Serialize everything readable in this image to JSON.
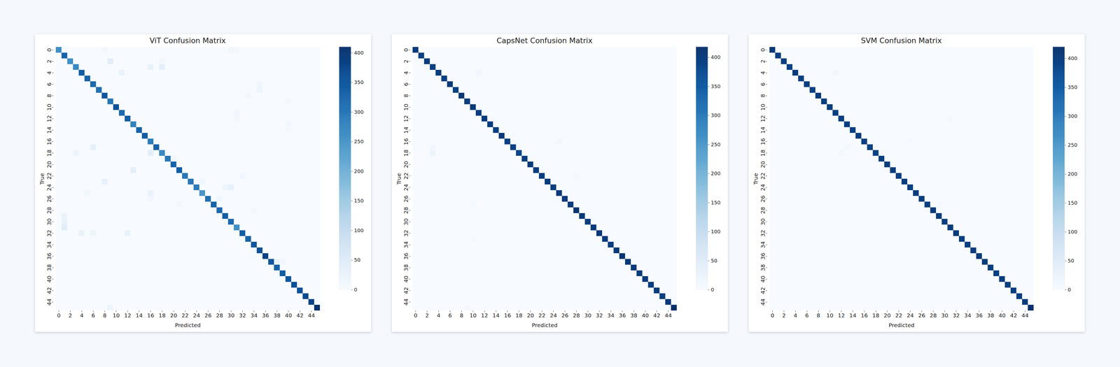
{
  "chart_data": [
    {
      "type": "heatmap",
      "title": "ViT Confusion Matrix",
      "xlabel": "Predicted",
      "ylabel": "True",
      "categories": [
        0,
        1,
        2,
        3,
        4,
        5,
        6,
        7,
        8,
        9,
        10,
        11,
        12,
        13,
        14,
        15,
        16,
        17,
        18,
        19,
        20,
        21,
        22,
        23,
        24,
        25,
        26,
        27,
        28,
        29,
        30,
        31,
        32,
        33,
        34,
        35,
        36,
        37,
        38,
        39,
        40,
        41,
        42,
        43,
        44,
        45
      ],
      "xticks": [
        0,
        2,
        4,
        6,
        8,
        10,
        12,
        14,
        16,
        18,
        20,
        22,
        24,
        26,
        28,
        30,
        32,
        34,
        36,
        38,
        40,
        42,
        44
      ],
      "yticks": [
        0,
        2,
        4,
        6,
        8,
        10,
        12,
        14,
        16,
        18,
        20,
        22,
        24,
        26,
        28,
        30,
        32,
        34,
        36,
        38,
        40,
        42,
        44
      ],
      "diagonal": [
        260,
        330,
        260,
        270,
        340,
        330,
        320,
        310,
        350,
        300,
        360,
        320,
        340,
        280,
        330,
        340,
        290,
        330,
        270,
        300,
        330,
        340,
        300,
        300,
        290,
        250,
        310,
        330,
        320,
        340,
        320,
        260,
        340,
        330,
        350,
        360,
        380,
        350,
        330,
        340,
        350,
        360,
        360,
        370,
        380,
        410
      ],
      "off_diagonal": [
        [
          0,
          8,
          12
        ],
        [
          0,
          30,
          15
        ],
        [
          0,
          31,
          10
        ],
        [
          2,
          9,
          45
        ],
        [
          2,
          18,
          12
        ],
        [
          3,
          16,
          30
        ],
        [
          3,
          18,
          40
        ],
        [
          4,
          11,
          30
        ],
        [
          6,
          35,
          15
        ],
        [
          7,
          35,
          20
        ],
        [
          8,
          33,
          12
        ],
        [
          9,
          40,
          10
        ],
        [
          11,
          31,
          15
        ],
        [
          12,
          31,
          10
        ],
        [
          13,
          40,
          12
        ],
        [
          14,
          40,
          10
        ],
        [
          17,
          6,
          35
        ],
        [
          18,
          3,
          20
        ],
        [
          18,
          16,
          45
        ],
        [
          19,
          20,
          12
        ],
        [
          21,
          13,
          40
        ],
        [
          22,
          32,
          15
        ],
        [
          23,
          8,
          35
        ],
        [
          23,
          25,
          15
        ],
        [
          24,
          29,
          20
        ],
        [
          24,
          30,
          35
        ],
        [
          25,
          5,
          15
        ],
        [
          25,
          16,
          30
        ],
        [
          26,
          16,
          12
        ],
        [
          26,
          28,
          15
        ],
        [
          27,
          21,
          12
        ],
        [
          28,
          34,
          12
        ],
        [
          29,
          1,
          25
        ],
        [
          30,
          1,
          30
        ],
        [
          31,
          1,
          45
        ],
        [
          32,
          4,
          30
        ],
        [
          32,
          6,
          20
        ],
        [
          32,
          12,
          30
        ],
        [
          37,
          38,
          30
        ],
        [
          37,
          39,
          15
        ],
        [
          45,
          9,
          20
        ]
      ],
      "colorbar_range": [
        0,
        410
      ],
      "colorbar_ticks": [
        0,
        50,
        100,
        150,
        200,
        250,
        300,
        350,
        400
      ]
    },
    {
      "type": "heatmap",
      "title": "CapsNet Confusion Matrix",
      "xlabel": "Predicted",
      "ylabel": "True",
      "categories": [
        0,
        1,
        2,
        3,
        4,
        5,
        6,
        7,
        8,
        9,
        10,
        11,
        12,
        13,
        14,
        15,
        16,
        17,
        18,
        19,
        20,
        21,
        22,
        23,
        24,
        25,
        26,
        27,
        28,
        29,
        30,
        31,
        32,
        33,
        34,
        35,
        36,
        37,
        38,
        39,
        40,
        41,
        42,
        43,
        44,
        45
      ],
      "xticks": [
        0,
        2,
        4,
        6,
        8,
        10,
        12,
        14,
        16,
        18,
        20,
        22,
        24,
        26,
        28,
        30,
        32,
        34,
        36,
        38,
        40,
        42,
        44
      ],
      "yticks": [
        0,
        2,
        4,
        6,
        8,
        10,
        12,
        14,
        16,
        18,
        20,
        22,
        24,
        26,
        28,
        30,
        32,
        34,
        36,
        38,
        40,
        42,
        44
      ],
      "diagonal": [
        400,
        395,
        400,
        392,
        398,
        395,
        400,
        392,
        405,
        398,
        402,
        396,
        400,
        398,
        395,
        404,
        392,
        388,
        384,
        396,
        400,
        398,
        398,
        400,
        396,
        402,
        400,
        398,
        410,
        404,
        398,
        402,
        405,
        400,
        398,
        402,
        410,
        404,
        400,
        398,
        402,
        396,
        400,
        395,
        404,
        418
      ],
      "off_diagonal": [
        [
          4,
          11,
          15
        ],
        [
          16,
          25,
          12
        ],
        [
          17,
          3,
          12
        ],
        [
          18,
          3,
          25
        ],
        [
          22,
          28,
          12
        ],
        [
          27,
          10,
          8
        ],
        [
          33,
          10,
          8
        ],
        [
          45,
          9,
          10
        ]
      ],
      "colorbar_range": [
        0,
        418
      ],
      "colorbar_ticks": [
        0,
        50,
        100,
        150,
        200,
        250,
        300,
        350,
        400
      ]
    },
    {
      "type": "heatmap",
      "title": "SVM Confusion Matrix",
      "xlabel": "Predicted",
      "ylabel": "True",
      "categories": [
        0,
        1,
        2,
        3,
        4,
        5,
        6,
        7,
        8,
        9,
        10,
        11,
        12,
        13,
        14,
        15,
        16,
        17,
        18,
        19,
        20,
        21,
        22,
        23,
        24,
        25,
        26,
        27,
        28,
        29,
        30,
        31,
        32,
        33,
        34,
        35,
        36,
        37,
        38,
        39,
        40,
        41,
        42,
        43,
        44,
        45
      ],
      "xticks": [
        0,
        2,
        4,
        6,
        8,
        10,
        12,
        14,
        16,
        18,
        20,
        22,
        24,
        26,
        28,
        30,
        32,
        34,
        36,
        38,
        40,
        42,
        44
      ],
      "yticks": [
        0,
        2,
        4,
        6,
        8,
        10,
        12,
        14,
        16,
        18,
        20,
        22,
        24,
        26,
        28,
        30,
        32,
        34,
        36,
        38,
        40,
        42,
        44
      ],
      "diagonal": [
        402,
        396,
        398,
        394,
        400,
        396,
        398,
        394,
        402,
        398,
        400,
        396,
        398,
        396,
        394,
        400,
        394,
        392,
        390,
        396,
        398,
        400,
        396,
        398,
        396,
        400,
        398,
        396,
        402,
        400,
        398,
        400,
        402,
        398,
        396,
        400,
        404,
        400,
        398,
        396,
        400,
        396,
        398,
        396,
        402,
        420
      ],
      "off_diagonal": [
        [
          4,
          11,
          12
        ],
        [
          12,
          31,
          6
        ],
        [
          16,
          24,
          8
        ],
        [
          17,
          13,
          10
        ],
        [
          18,
          12,
          10
        ],
        [
          27,
          29,
          8
        ]
      ],
      "colorbar_range": [
        0,
        420
      ],
      "colorbar_ticks": [
        0,
        50,
        100,
        150,
        200,
        250,
        300,
        350,
        400
      ]
    }
  ]
}
